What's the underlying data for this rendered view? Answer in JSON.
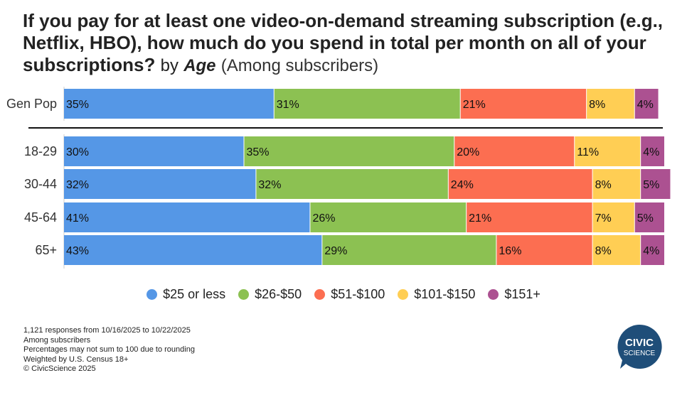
{
  "title": {
    "bold": "If you pay for at least one video-on-demand streaming subscription (e.g., Netflix, HBO), how much do you spend in total per month on all of your subscriptions?",
    "by": "by",
    "dimension": "Age",
    "subtitle": "(Among subscribers)"
  },
  "colors": {
    "s1": "#5597e6",
    "s2": "#8cc152",
    "s3": "#fc6e51",
    "s4": "#ffce54",
    "s5": "#ac5191",
    "logo": "#1f4e79"
  },
  "chart_data": {
    "type": "bar",
    "orientation": "horizontal",
    "stacked": true,
    "categories": [
      "Gen Pop",
      "18-29",
      "30-44",
      "45-64",
      "65+"
    ],
    "series": [
      {
        "name": "$25 or less",
        "values": [
          35,
          30,
          32,
          41,
          43
        ]
      },
      {
        "name": "$26-$50",
        "values": [
          31,
          35,
          32,
          26,
          29
        ]
      },
      {
        "name": "$51-$100",
        "values": [
          21,
          20,
          24,
          21,
          16
        ]
      },
      {
        "name": "$101-$150",
        "values": [
          8,
          11,
          8,
          7,
          8
        ]
      },
      {
        "name": "$151+",
        "values": [
          4,
          4,
          5,
          5,
          4
        ]
      }
    ],
    "value_suffix": "%",
    "xlim": [
      0,
      100
    ],
    "legend_position": "bottom"
  },
  "footnotes": [
    "1,121 responses from 10/16/2025 to 10/22/2025",
    "Among subscribers",
    "Percentages may not sum to 100 due to rounding",
    "Weighted by U.S. Census 18+",
    "© CivicScience 2025"
  ],
  "logo": {
    "line1": "CIVIC",
    "line2": "SCIENCE"
  }
}
